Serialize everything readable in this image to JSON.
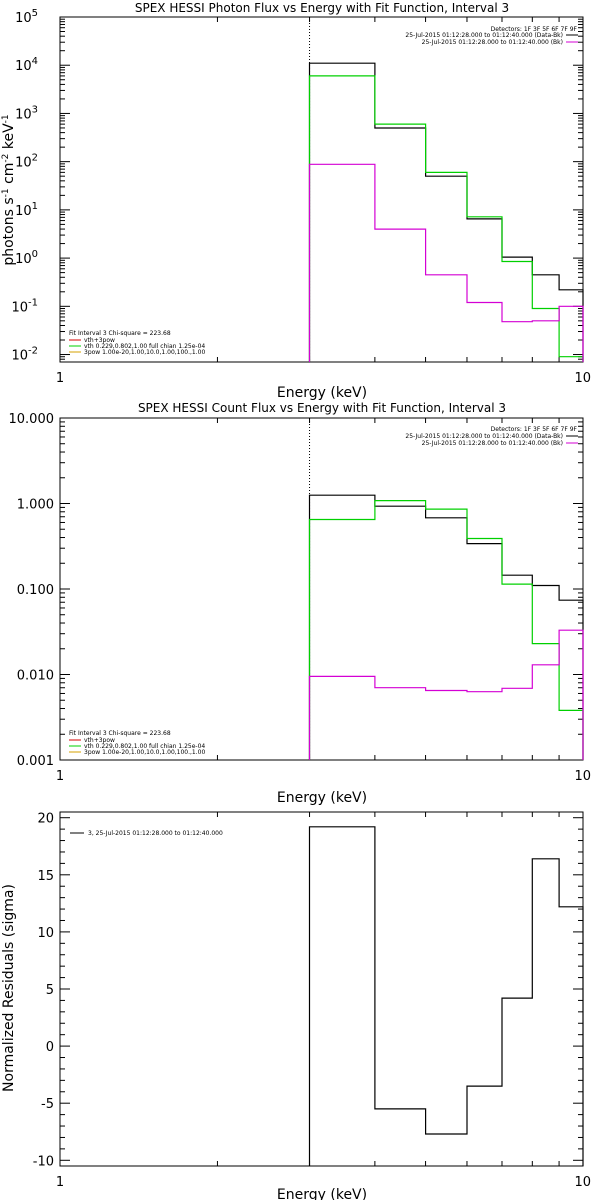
{
  "colors": {
    "black": "#000000",
    "magenta": "#d400d4",
    "green": "#00d000",
    "red": "#d40000",
    "orange": "#d4a000"
  },
  "chart_data": [
    {
      "type": "line",
      "scale": "log-log",
      "title": "SPEX HESSI Photon Flux vs Energy with Fit Function, Interval 3",
      "xlabel": "Energy (keV)",
      "ylabel": "photons s⁻¹ cm⁻² keV⁻¹",
      "xlim": [
        1,
        10
      ],
      "ylim": [
        0.007,
        100000
      ],
      "xticks": [
        {
          "v": 1,
          "label": "1"
        },
        {
          "v": 10,
          "label": "10"
        }
      ],
      "yticks": [
        {
          "v": 0.01,
          "base": "10",
          "exp": "-2"
        },
        {
          "v": 0.1,
          "base": "10",
          "exp": "-1"
        },
        {
          "v": 1,
          "base": "10",
          "exp": "0"
        },
        {
          "v": 10,
          "base": "10",
          "exp": "1"
        },
        {
          "v": 100,
          "base": "10",
          "exp": "2"
        },
        {
          "v": 1000,
          "base": "10",
          "exp": "3"
        },
        {
          "v": 10000,
          "base": "10",
          "exp": "4"
        },
        {
          "v": 100000,
          "base": "10",
          "exp": "5"
        }
      ],
      "vline": 3.0,
      "bin_edges": [
        3.0,
        4.0,
        5.0,
        6.0,
        7.0,
        8.0,
        9.0,
        10.0
      ],
      "series": [
        {
          "color": "#000000",
          "values": [
            11000,
            500,
            50,
            6.5,
            1.05,
            0.45,
            0.22
          ]
        },
        {
          "color": "#00d000",
          "values": [
            6000,
            600,
            60,
            7.2,
            0.85,
            0.09,
            0.009
          ]
        },
        {
          "color": "#d400d4",
          "values": [
            88,
            4.0,
            0.45,
            0.12,
            0.048,
            0.05,
            0.1
          ]
        }
      ],
      "detectors": {
        "header": "Detectors: 1F 3F 5F 6F 7F 9F",
        "lines": [
          {
            "text": "25-Jul-2015 01:12:28.000 to 01:12:40.000 (Data-Bk)",
            "color": "#000000"
          },
          {
            "text": "25-Jul-2015 01:12:28.000 to 01:12:40.000 (Bk)",
            "color": "#d400d4"
          }
        ]
      },
      "fit_legend": {
        "header": "Fit Interval 3   Chi-square = 223.68",
        "lines": [
          {
            "text": "vth+3pow",
            "color": "#d40000"
          },
          {
            "text": "vth 0.229,0.802,1.00  full chian 1.25e-04",
            "color": "#00d000"
          },
          {
            "text": "3pow 1.00e-20,1.00,10.0,1.00,100.,1.00",
            "color": "#d4a000"
          }
        ]
      }
    },
    {
      "type": "line",
      "scale": "log-log",
      "title": "SPEX HESSI Count Flux vs Energy with Fit Function, Interval 3",
      "xlabel": "Energy (keV)",
      "ylabel": "",
      "xlim": [
        1,
        10
      ],
      "ylim": [
        0.001,
        10
      ],
      "xticks": [
        {
          "v": 1,
          "label": "1"
        },
        {
          "v": 10,
          "label": "10"
        }
      ],
      "yticks": [
        {
          "v": 0.001,
          "label": "0.001"
        },
        {
          "v": 0.01,
          "label": "0.010"
        },
        {
          "v": 0.1,
          "label": "0.100"
        },
        {
          "v": 1,
          "label": "1.000"
        },
        {
          "v": 10,
          "label": "10.000"
        }
      ],
      "vline": 3.0,
      "bin_edges": [
        3.0,
        4.0,
        5.0,
        6.0,
        7.0,
        8.0,
        9.0,
        10.0
      ],
      "series": [
        {
          "color": "#000000",
          "values": [
            1.25,
            0.93,
            0.68,
            0.34,
            0.145,
            0.11,
            0.074
          ]
        },
        {
          "color": "#00d000",
          "values": [
            0.65,
            1.08,
            0.86,
            0.39,
            0.114,
            0.023,
            0.0038
          ]
        },
        {
          "color": "#d400d4",
          "values": [
            0.0095,
            0.007,
            0.0065,
            0.0063,
            0.0069,
            0.013,
            0.033
          ]
        }
      ],
      "detectors": {
        "header": "Detectors: 1F 3F 5F 6F 7F 9F",
        "lines": [
          {
            "text": "25-Jul-2015 01:12:28.000 to 01:12:40.000 (Data-Bk)",
            "color": "#000000"
          },
          {
            "text": "25-Jul-2015 01:12:28.000 to 01:12:40.000 (Bk)",
            "color": "#d400d4"
          }
        ]
      },
      "fit_legend": {
        "header": "Fit Interval 3   Chi-square = 223.68",
        "lines": [
          {
            "text": "vth+3pow",
            "color": "#d40000"
          },
          {
            "text": "vth 0.229,0.802,1.00  full chian 1.25e-04",
            "color": "#00d000"
          },
          {
            "text": "3pow 1.00e-20,1.00,10.0,1.00,100.,1.00",
            "color": "#d4a000"
          }
        ]
      }
    },
    {
      "type": "line",
      "scale": "log-linear",
      "title": "",
      "xlabel": "Energy (keV)",
      "ylabel": "Normalized Residuals (sigma)",
      "xlim": [
        1,
        10
      ],
      "ylim": [
        -10.5,
        20.5
      ],
      "xticks": [
        {
          "v": 1,
          "label": "1"
        },
        {
          "v": 10,
          "label": "10"
        }
      ],
      "yticks": [
        {
          "v": -10,
          "label": "-10"
        },
        {
          "v": -5,
          "label": "-5"
        },
        {
          "v": 0,
          "label": "0"
        },
        {
          "v": 5,
          "label": "5"
        },
        {
          "v": 10,
          "label": "10"
        },
        {
          "v": 15,
          "label": "15"
        },
        {
          "v": 20,
          "label": "20"
        }
      ],
      "bin_edges": [
        3.0,
        4.0,
        5.0,
        6.0,
        7.0,
        8.0,
        9.0,
        10.0
      ],
      "series": [
        {
          "color": "#000000",
          "values": [
            19.2,
            -5.5,
            -7.7,
            -3.5,
            4.2,
            16.4,
            12.2
          ]
        }
      ],
      "residual_legend": "3, 25-Jul-2015 01:12:28.000 to 01:12:40.000"
    }
  ]
}
